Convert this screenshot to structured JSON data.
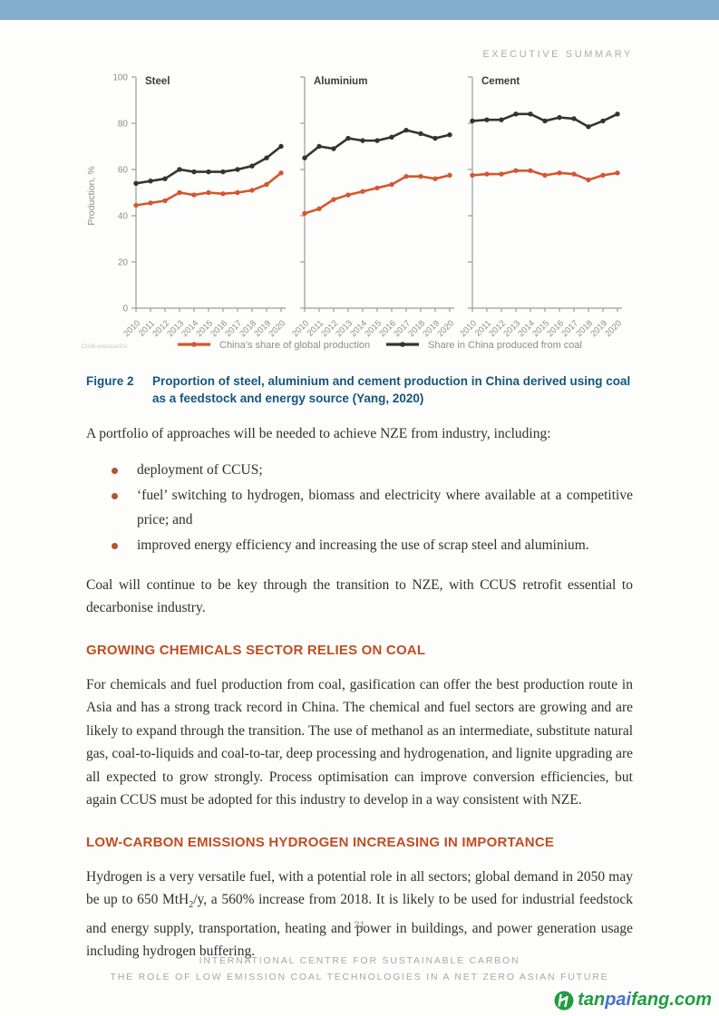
{
  "header": {
    "section_label": "EXECUTIVE SUMMARY"
  },
  "colors": {
    "topbar": "#83aecb",
    "heading_accent": "#bf4e22",
    "caption_blue": "#15567d",
    "series_orange": "#d4572e",
    "series_black": "#333333"
  },
  "chart_data": {
    "type": "line",
    "x": [
      2010,
      2011,
      2012,
      2013,
      2014,
      2015,
      2016,
      2017,
      2018,
      2019,
      2020
    ],
    "ylabel": "Production, %",
    "ylim": [
      0,
      100
    ],
    "yticks": [
      0,
      20,
      40,
      60,
      80,
      100
    ],
    "grid": false,
    "legend_position": "bottom",
    "watermark": "CIAB-execsum02",
    "panels": [
      {
        "title": "Steel",
        "series": [
          {
            "name": "China's share of global production",
            "color": "#d4572e",
            "values": [
              44.5,
              45.5,
              46.5,
              50,
              49,
              50,
              49.5,
              50,
              51,
              53.5,
              58.5
            ]
          },
          {
            "name": "Share in China produced from coal",
            "color": "#333333",
            "values": [
              54,
              55,
              56,
              60,
              59,
              59,
              59,
              60,
              61.5,
              65,
              70
            ]
          }
        ]
      },
      {
        "title": "Aluminium",
        "series": [
          {
            "name": "China's share of global production",
            "color": "#d4572e",
            "values": [
              41,
              43,
              47,
              49,
              50.5,
              52,
              53.5,
              57,
              57,
              56,
              57.5
            ]
          },
          {
            "name": "Share in China produced from coal",
            "color": "#333333",
            "values": [
              65,
              70,
              69,
              73.5,
              72.5,
              72.5,
              74,
              77,
              75.5,
              73.5,
              75
            ]
          }
        ]
      },
      {
        "title": "Cement",
        "series": [
          {
            "name": "China's share of global production",
            "color": "#d4572e",
            "values": [
              57.5,
              58,
              58,
              59.5,
              59.5,
              57.5,
              58.5,
              58,
              55.5,
              57.5,
              58.5
            ]
          },
          {
            "name": "Share in China produced from coal",
            "color": "#333333",
            "values": [
              81,
              81.5,
              81.5,
              84,
              84,
              81,
              82.5,
              82,
              78.5,
              81,
              84
            ]
          }
        ]
      }
    ],
    "legend": [
      {
        "label": "China’s share of global production",
        "color": "#d4572e"
      },
      {
        "label": "Share in China produced from coal",
        "color": "#333333"
      }
    ]
  },
  "figure": {
    "label": "Figure 2",
    "caption": "Proportion of steel, aluminium and cement production in China derived using coal as a feedstock and energy source (Yang, 2020)"
  },
  "content": {
    "intro": "A portfolio of approaches will be needed to achieve NZE from industry, including:",
    "bullets": [
      "deployment of CCUS;",
      "‘fuel’ switching to hydrogen, biomass and electricity where available at a competitive price; and",
      "improved energy efficiency and increasing the use of scrap steel and aluminium."
    ],
    "coal_paragraph": "Coal will continue to be key through the transition to NZE, with CCUS retrofit essential to decarbonise industry.",
    "heading_chemicals": "GROWING CHEMICALS SECTOR RELIES ON COAL",
    "chemicals_paragraph": "For chemicals and fuel production from coal, gasification can offer the best production route in Asia and has a strong track record in China. The chemical and fuel sectors are growing and are likely to expand through the transition. The use of methanol as an intermediate, substitute natural gas, coal-to-liquids and coal-to-tar, deep processing and hydrogenation, and lignite upgrading are all expected to grow strongly. Process optimisation can improve conversion efficiencies, but again CCUS must be adopted for this industry to develop in a way consistent with NZE.",
    "heading_hydrogen": "LOW-CARBON EMISSIONS HYDROGEN INCREASING IN IMPORTANCE",
    "hydrogen_paragraph": {
      "part1": "Hydrogen is a very versatile fuel, with a potential role in all sectors; global demand in 2050 may be up to 650 MtH",
      "sub": "2",
      "part2": "/y, a 560% increase from 2018. It is likely to be used for industrial feedstock and energy supply, transportation, heating and power in buildings, and power generation usage including hydrogen buffering."
    }
  },
  "footer": {
    "page_number": "21",
    "line1": "INTERNATIONAL CENTRE FOR SUSTAINABLE CARBON",
    "line2": "THE ROLE OF LOW EMISSION COAL TECHNOLOGIES IN A NET ZERO ASIAN FUTURE",
    "logo": {
      "text_tan": "tan",
      "text_pai": "pai",
      "text_fang": "fang.com",
      "green": "#1f9e3f",
      "blue": "#4a6fd0"
    }
  }
}
